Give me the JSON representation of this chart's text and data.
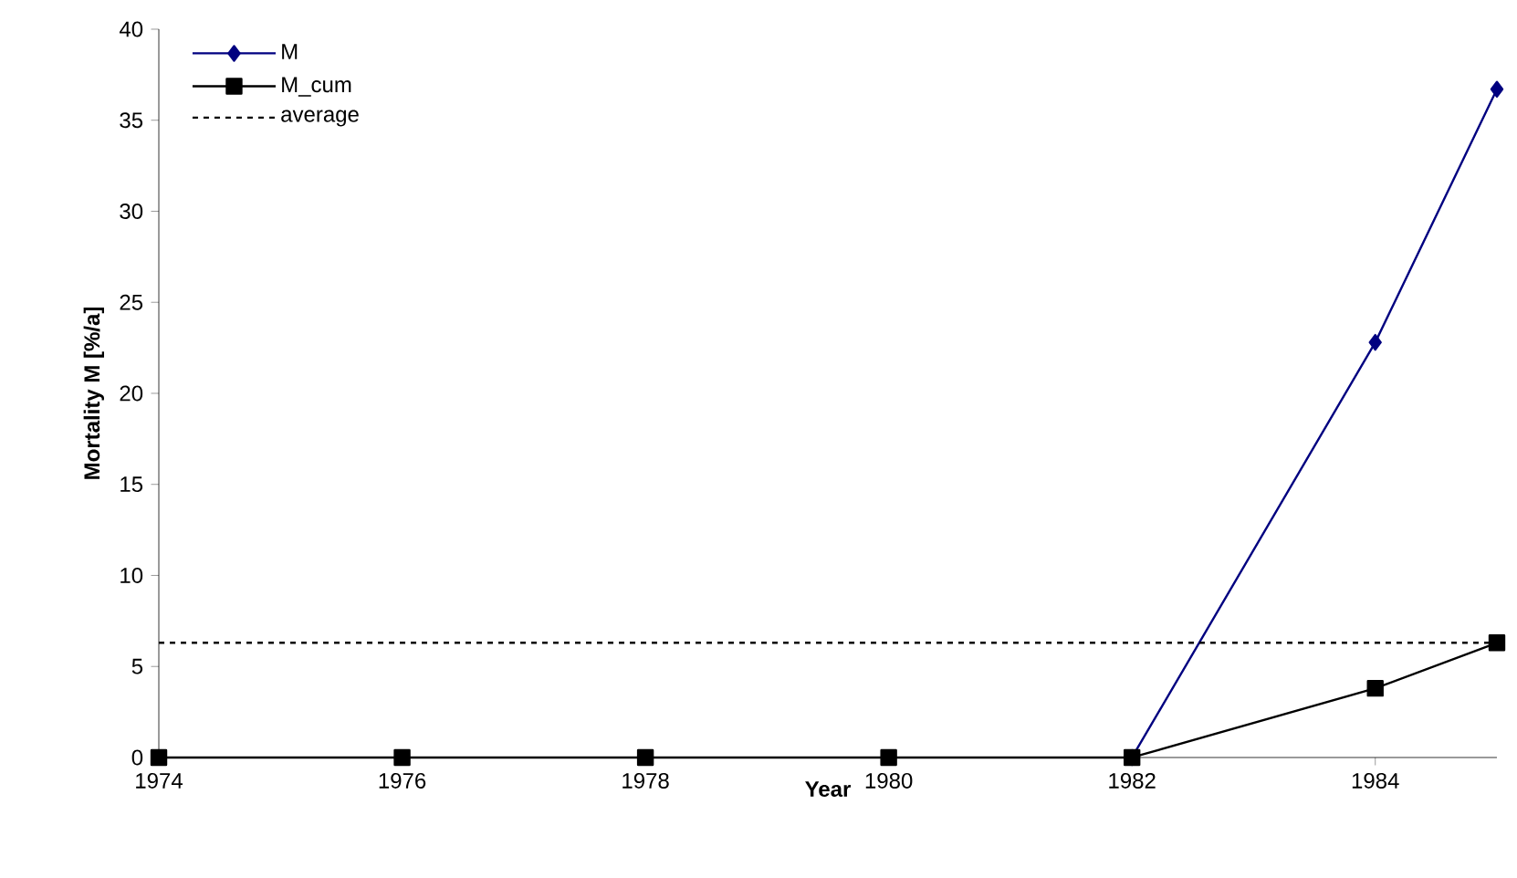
{
  "chart_data": {
    "type": "line",
    "xlabel": "Year",
    "ylabel": "Mortality M [%/a]",
    "x": [
      1974,
      1976,
      1978,
      1980,
      1982,
      1984,
      1985
    ],
    "series": [
      {
        "name": "M",
        "color": "#000080",
        "marker": "diamond",
        "line_style": "solid",
        "values": [
          null,
          null,
          null,
          null,
          0,
          22.8,
          36.7
        ]
      },
      {
        "name": "M_cum",
        "color": "#000000",
        "marker": "square",
        "line_style": "solid",
        "values": [
          0,
          0,
          0,
          0,
          0,
          3.8,
          6.3
        ]
      },
      {
        "name": "average",
        "color": "#000000",
        "marker": "none",
        "line_style": "dashed",
        "x": [
          1974,
          1985
        ],
        "values": [
          6.3,
          6.3
        ]
      }
    ],
    "xlim": [
      1974,
      1985
    ],
    "xticks": [
      1974,
      1976,
      1978,
      1980,
      1982,
      1984
    ],
    "ylim": [
      0,
      40
    ],
    "yticks": [
      0,
      5,
      10,
      15,
      20,
      25,
      30,
      35,
      40
    ],
    "grid": false,
    "legend": "top left"
  }
}
